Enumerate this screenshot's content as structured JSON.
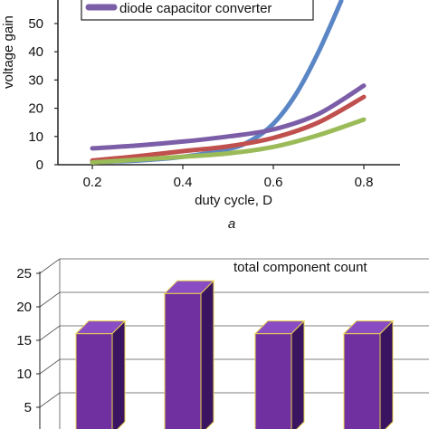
{
  "chart_data": [
    {
      "type": "line",
      "ylabel": "voltage gain",
      "xlabel": "duty cycle, D",
      "panel_label": "a",
      "xlim": [
        0.1,
        0.9
      ],
      "ylim": [
        0,
        55
      ],
      "x_ticks": [
        "0.2",
        "0.4",
        "0.6",
        "0.8"
      ],
      "y_ticks": [
        "0",
        "10",
        "20",
        "30",
        "40",
        "50"
      ],
      "legend": {
        "position": "top",
        "visible_entry": "diode capacitor converter",
        "visible_entry_color": "#7b5ea7"
      },
      "series": [
        {
          "name": "",
          "color": "#5b86c5",
          "x": [
            0.2,
            0.3,
            0.4,
            0.5,
            0.55,
            0.6,
            0.65,
            0.7,
            0.75
          ],
          "y": [
            1,
            1.5,
            2.8,
            5.5,
            8.5,
            14.5,
            25,
            40,
            58
          ]
        },
        {
          "name": "diode capacitor converter",
          "color": "#7b5ea7",
          "x": [
            0.2,
            0.3,
            0.4,
            0.5,
            0.6,
            0.7,
            0.8
          ],
          "y": [
            5.8,
            6.8,
            8.2,
            10,
            12.5,
            18,
            28
          ]
        },
        {
          "name": "",
          "color": "#c0504d",
          "x": [
            0.2,
            0.3,
            0.4,
            0.5,
            0.6,
            0.7,
            0.8
          ],
          "y": [
            1.5,
            3,
            4.8,
            6.5,
            9.5,
            15,
            24
          ]
        },
        {
          "name": "",
          "color": "#9bbb59",
          "x": [
            0.2,
            0.3,
            0.4,
            0.5,
            0.6,
            0.7,
            0.8
          ],
          "y": [
            0.8,
            1.8,
            2.8,
            4,
            6.3,
            10.5,
            16
          ]
        }
      ]
    },
    {
      "type": "bar",
      "title": "total component count",
      "ylim": [
        0,
        25
      ],
      "y_ticks": [
        "5",
        "10",
        "15",
        "20",
        "25"
      ],
      "values": [
        16,
        22,
        16,
        16
      ],
      "bar_color": "#7030a0",
      "bar_edge": "#e8d44d"
    }
  ]
}
